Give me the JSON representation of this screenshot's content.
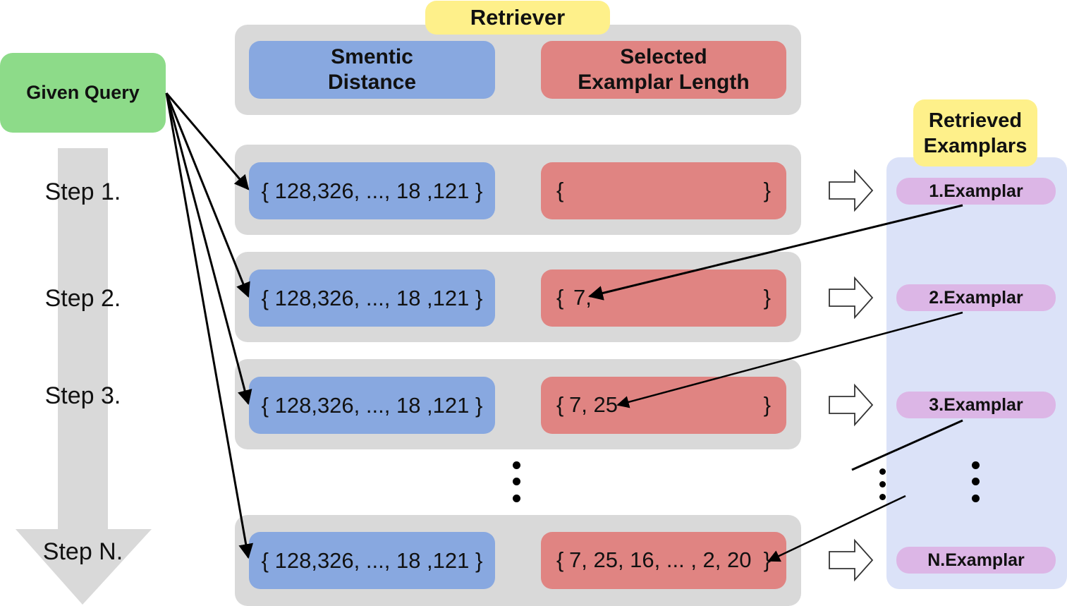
{
  "retriever_label": "Retriever",
  "given_query": "Given Query",
  "headers": {
    "semantic": "Smentic\nDistance",
    "length": "Selected\nExamplar Length"
  },
  "retrieved_label": "Retrieved\nExamplars",
  "steps": [
    {
      "label": "Step 1.",
      "distances": "{ 128,326, ..., 18 ,121 }",
      "lengths": "",
      "examplar": "1.Examplar"
    },
    {
      "label": "Step 2.",
      "distances": "{ 128,326, ..., 18 ,121 }",
      "lengths": "7,",
      "examplar": "2.Examplar"
    },
    {
      "label": "Step 3.",
      "distances": "{ 128,326, ..., 18 ,121 }",
      "lengths": "7, 25",
      "examplar": "3.Examplar"
    },
    {
      "label": "Step N.",
      "distances": "{ 128,326, ..., 18 ,121 }",
      "lengths": "7, 25, 16, ... , 2, 20",
      "examplar": "N.Examplar"
    }
  ],
  "brace_open": "{",
  "brace_close": "}"
}
